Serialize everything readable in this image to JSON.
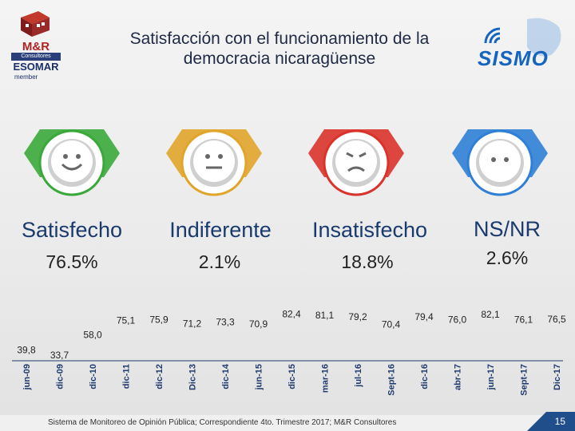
{
  "slide": {
    "title_line1": "Satisfacción con el funcionamiento de la",
    "title_line2": "democracia nicaragüense",
    "page_number": "15",
    "footer_source": "Sistema de Monitoreo de Opinión Pública; Correspondiente 4to. Trimestre 2017; M&R Consultores"
  },
  "logos": {
    "mr_name": "M&R",
    "mr_sub": "Consultores",
    "esomar": "ESOMAR",
    "esomar_member": "member",
    "sismo": "SISMO"
  },
  "categories": [
    {
      "label": "Satisfecho",
      "value": "76.5%",
      "color": "#3aa83a",
      "face": "happy"
    },
    {
      "label": "Indiferente",
      "value": "2.1%",
      "color": "#e0a52a",
      "face": "neutral"
    },
    {
      "label": "Insatisfecho",
      "value": "18.8%",
      "color": "#d9332b",
      "face": "sad"
    },
    {
      "label": "NS/NR",
      "value": "2.6%",
      "color": "#2f7fd6",
      "face": "dots"
    }
  ],
  "chart_data": {
    "type": "line",
    "title": "Satisfacción con el funcionamiento de la democracia",
    "x": [
      "jun-09",
      "dic-09",
      "dic-10",
      "dic-11",
      "dic-12",
      "Dic-13",
      "dic-14",
      "jun-15",
      "dic-15",
      "mar-16",
      "jul-16",
      "Sept-16",
      "dic-16",
      "abr-17",
      "jun-17",
      "Sept-17",
      "Dic-17"
    ],
    "series": [
      {
        "name": "Satisfecho",
        "values": [
          39.8,
          33.7,
          58.0,
          75.1,
          75.9,
          71.2,
          73.3,
          70.9,
          82.4,
          81.1,
          79.2,
          70.4,
          79.4,
          76.0,
          82.1,
          76.1,
          76.5
        ]
      }
    ],
    "value_labels": [
      "39,8",
      "33,7",
      "58,0",
      "75,1",
      "75,9",
      "71,2",
      "73,3",
      "70,9",
      "82,4",
      "81,1",
      "79,2",
      "70,4",
      "79,4",
      "76,0",
      "82,1",
      "76,1",
      "76,5"
    ],
    "ylim": [
      30,
      85
    ]
  }
}
